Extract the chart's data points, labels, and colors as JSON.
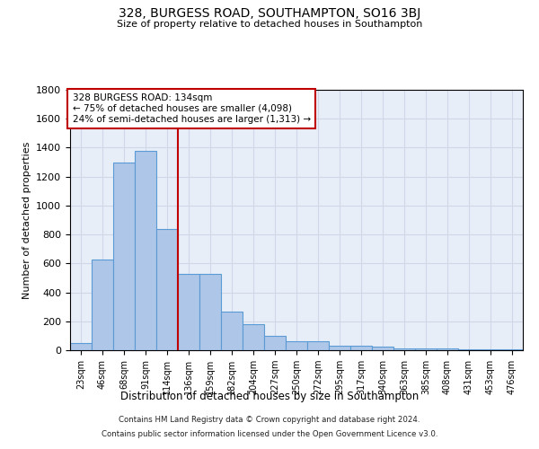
{
  "title": "328, BURGESS ROAD, SOUTHAMPTON, SO16 3BJ",
  "subtitle": "Size of property relative to detached houses in Southampton",
  "xlabel": "Distribution of detached houses by size in Southampton",
  "ylabel": "Number of detached properties",
  "categories": [
    "23sqm",
    "46sqm",
    "68sqm",
    "91sqm",
    "114sqm",
    "136sqm",
    "159sqm",
    "182sqm",
    "204sqm",
    "227sqm",
    "250sqm",
    "272sqm",
    "295sqm",
    "317sqm",
    "340sqm",
    "363sqm",
    "385sqm",
    "408sqm",
    "431sqm",
    "453sqm",
    "476sqm"
  ],
  "values": [
    50,
    630,
    1300,
    1380,
    840,
    530,
    530,
    270,
    180,
    100,
    60,
    60,
    30,
    30,
    25,
    15,
    13,
    10,
    5,
    5,
    5
  ],
  "bar_color": "#aec6e8",
  "bar_edge_color": "#5b9bd5",
  "bar_linewidth": 0.8,
  "vline_pos": 4.5,
  "vline_color": "#c00000",
  "annotation_title": "328 BURGESS ROAD: 134sqm",
  "annotation_line1": "← 75% of detached houses are smaller (4,098)",
  "annotation_line2": "24% of semi-detached houses are larger (1,313) →",
  "annotation_box_color": "#ffffff",
  "annotation_box_edge": "#c00000",
  "ylim": [
    0,
    1800
  ],
  "yticks": [
    0,
    200,
    400,
    600,
    800,
    1000,
    1200,
    1400,
    1600,
    1800
  ],
  "grid_color": "#d0d8e8",
  "background_color": "#e8eef8",
  "footnote1": "Contains HM Land Registry data © Crown copyright and database right 2024.",
  "footnote2": "Contains public sector information licensed under the Open Government Licence v3.0."
}
